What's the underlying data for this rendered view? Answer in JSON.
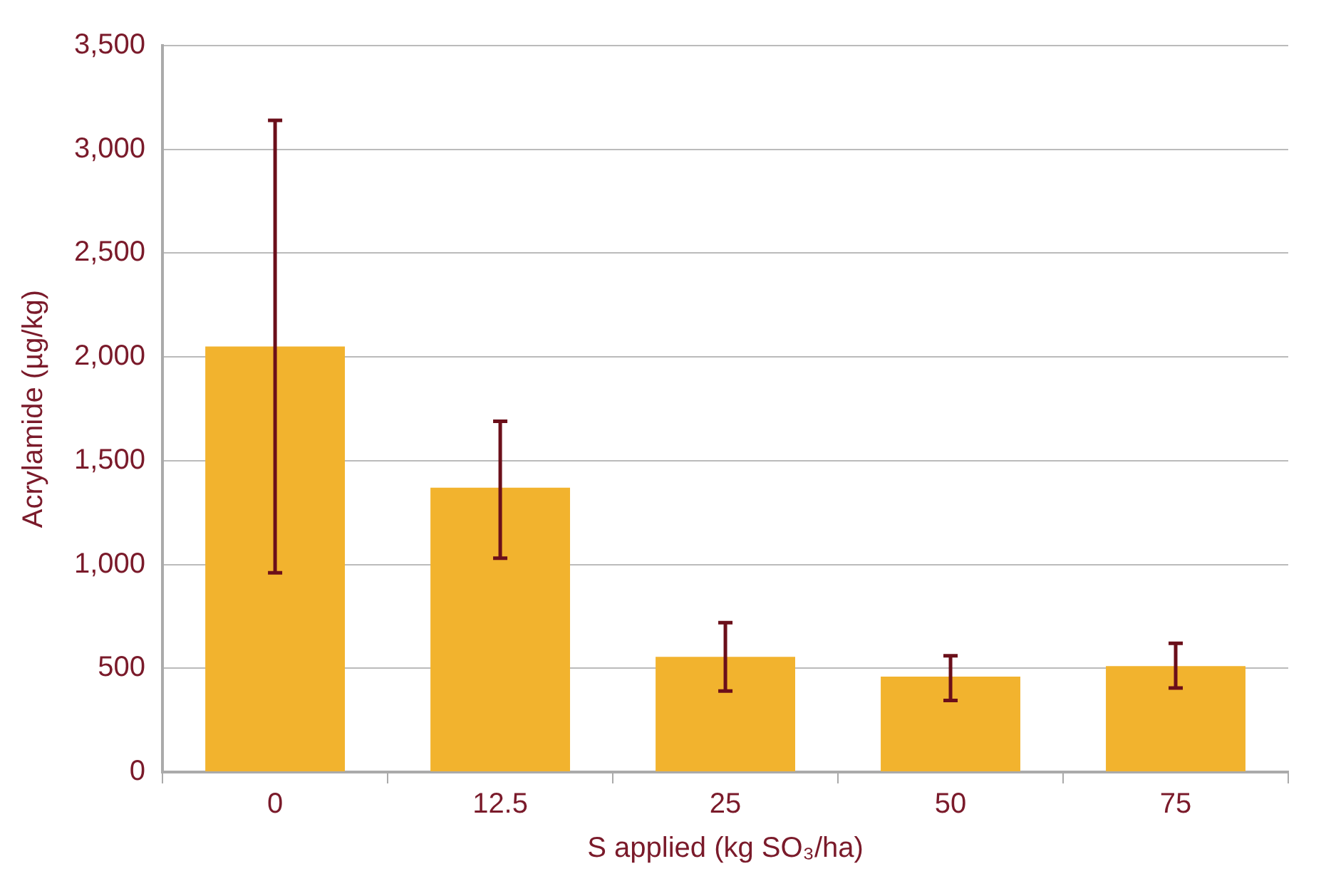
{
  "chart_data": {
    "type": "bar",
    "xlabel": "S applied (kg SO₃/ha)",
    "ylabel": "Acrylamide (µg/kg)",
    "categories": [
      "0",
      "12.5",
      "25",
      "50",
      "75"
    ],
    "values": [
      2050,
      1370,
      555,
      460,
      510
    ],
    "errors": [
      [
        960,
        3140
      ],
      [
        1030,
        1690
      ],
      [
        390,
        720
      ],
      [
        345,
        560
      ],
      [
        405,
        620
      ]
    ],
    "color": "#f2b32e",
    "ylim": [
      0,
      3500
    ],
    "yticks": [
      {
        "value": 0,
        "label": "0"
      },
      {
        "value": 500,
        "label": "500"
      },
      {
        "value": 1000,
        "label": "1,000"
      },
      {
        "value": 1500,
        "label": "1,500"
      },
      {
        "value": 2000,
        "label": "2,000"
      },
      {
        "value": 2500,
        "label": "2,500"
      },
      {
        "value": 3000,
        "label": "3,000"
      },
      {
        "value": 3500,
        "label": "3,500"
      }
    ],
    "grid": "y",
    "legend": false
  }
}
